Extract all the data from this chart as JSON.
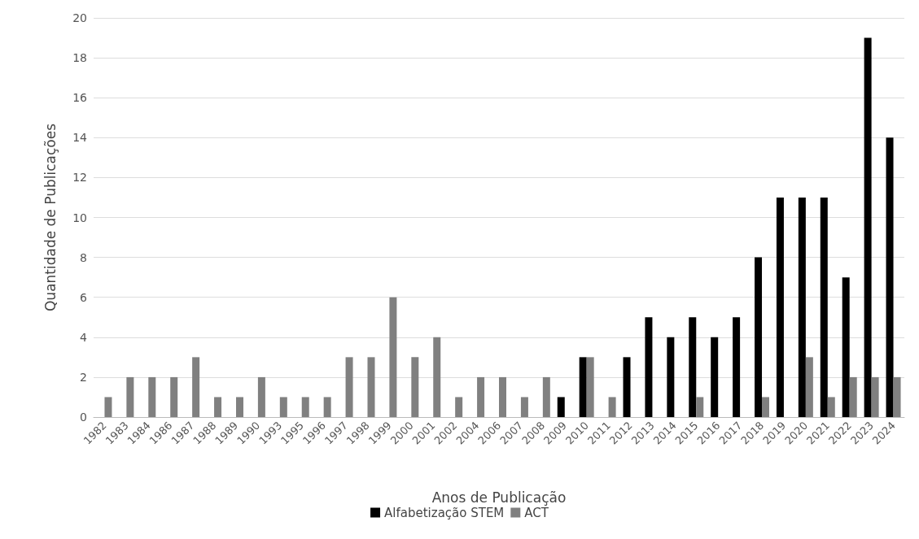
{
  "chart_data": {
    "type": "bar",
    "xlabel": "Anos de Publicação",
    "ylabel": "Quantidade de Publicações",
    "categories": [
      "1982",
      "1983",
      "1984",
      "1986",
      "1987",
      "1988",
      "1989",
      "1990",
      "1993",
      "1995",
      "1996",
      "1997",
      "1998",
      "1999",
      "2000",
      "2001",
      "2002",
      "2004",
      "2006",
      "2007",
      "2008",
      "2009",
      "2010",
      "2011",
      "2012",
      "2013",
      "2014",
      "2015",
      "2016",
      "2017",
      "2018",
      "2019",
      "2020",
      "2021",
      "2022",
      "2023",
      "2024"
    ],
    "series": [
      {
        "name": "Alfabetização STEM",
        "color": "#000000",
        "values": [
          null,
          null,
          null,
          null,
          null,
          null,
          null,
          null,
          null,
          null,
          null,
          null,
          null,
          null,
          null,
          null,
          null,
          null,
          null,
          null,
          null,
          1,
          3,
          null,
          3,
          5,
          4,
          5,
          4,
          5,
          8,
          11,
          11,
          11,
          7,
          19,
          14
        ]
      },
      {
        "name": "ACT",
        "color": "#808080",
        "values": [
          1,
          2,
          2,
          2,
          3,
          1,
          1,
          2,
          1,
          1,
          1,
          3,
          3,
          6,
          3,
          4,
          1,
          2,
          2,
          1,
          2,
          null,
          3,
          1,
          null,
          null,
          null,
          1,
          null,
          null,
          1,
          null,
          3,
          1,
          2,
          2,
          2
        ]
      }
    ],
    "ylim": [
      0,
      20
    ],
    "yticks": [
      0,
      2,
      4,
      6,
      8,
      10,
      12,
      14,
      16,
      18,
      20
    ],
    "grid": "y",
    "legend": "bottom"
  }
}
